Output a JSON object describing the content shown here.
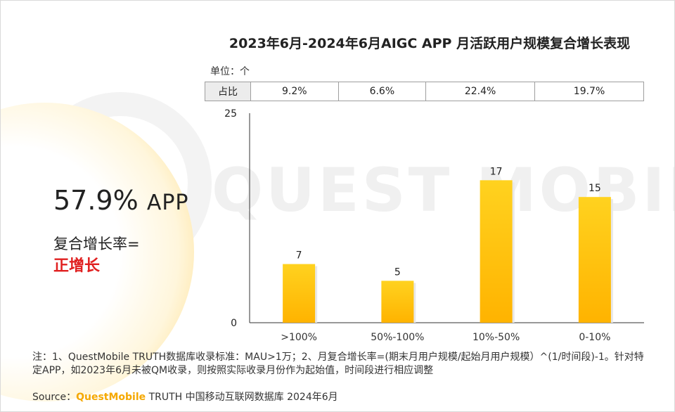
{
  "title": "2023年6月-2024年6月AIGC APP 月活跃用户规模复合增长表现",
  "unit_label": "单位：个",
  "share_row": {
    "header": "占比",
    "values": [
      "9.2%",
      "6.6%",
      "22.4%",
      "19.7%"
    ]
  },
  "highlight": {
    "value": "57.9%",
    "suffix": "APP",
    "line1": "复合增长率=",
    "line2": "正增长"
  },
  "watermark": "QUEST MOBILE",
  "chart_data": {
    "type": "bar",
    "categories": [
      ">100%",
      "50%-100%",
      "10%-50%",
      "0-10%"
    ],
    "values": [
      7,
      5,
      17,
      15
    ],
    "ylim": [
      0,
      25
    ],
    "yticks": [
      "0",
      "25"
    ],
    "data_labels": [
      "7",
      "5",
      "17",
      "15"
    ],
    "bar_color": "#ffc000",
    "grid": false
  },
  "note": "注：1、QuestMobile TRUTH数据库收录标准：MAU>1万；2、月复合增长率=(期末月用户规模/起始月用户规模）^(1/时间段)-1。针对特定APP，如2023年6月未被QM收录，则按照实际收录月份作为起始值，时间段进行相应调整",
  "source": {
    "prefix": "Source：",
    "brand": "QuestMobile",
    "rest": " TRUTH 中国移动互联网数据库 2024年6月"
  }
}
